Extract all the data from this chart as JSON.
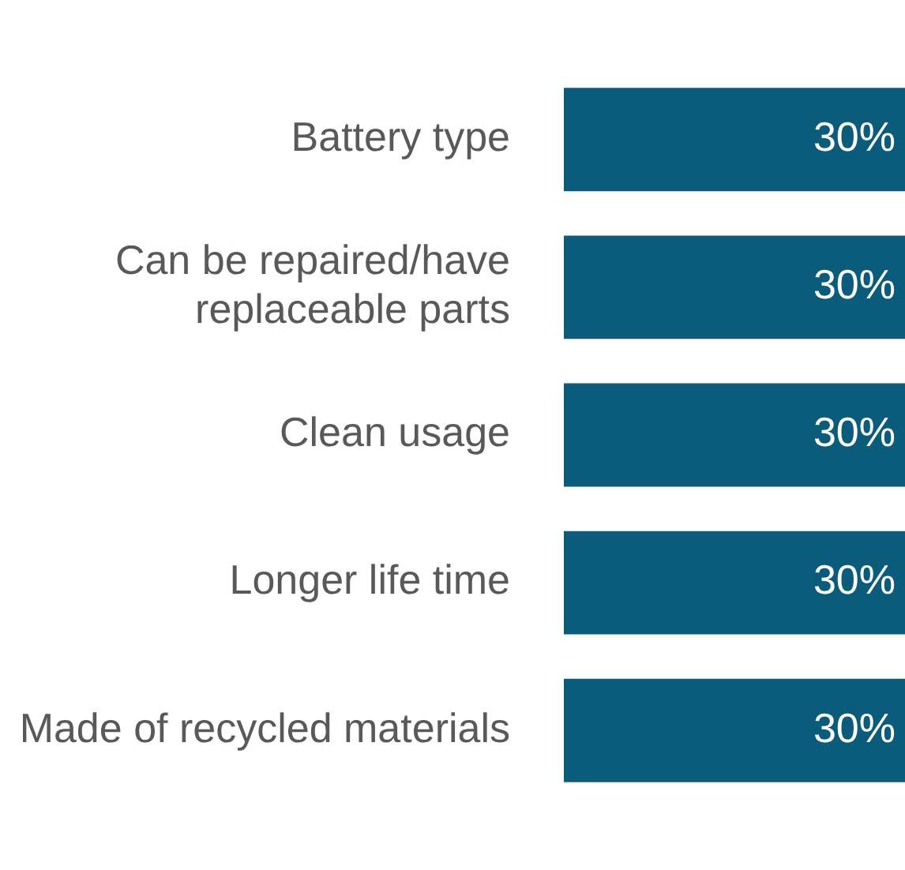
{
  "chart_data": {
    "type": "bar",
    "orientation": "horizontal",
    "categories": [
      "Battery type",
      "Can be repaired/have replaceable parts",
      "Clean usage",
      "Longer life time",
      "Made of recycled materials"
    ],
    "values": [
      30,
      30,
      30,
      30,
      30
    ],
    "color": "#0b5c7a",
    "value_labels": [
      "30%",
      "30%",
      "30%",
      "30%",
      "30%"
    ],
    "grid": false,
    "legend": false
  }
}
